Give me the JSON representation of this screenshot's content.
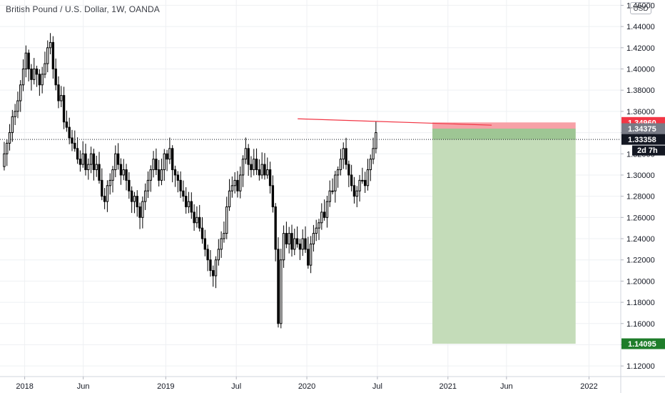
{
  "header": {
    "title": "British Pound / U.S. Dollar, 1W, OANDA",
    "currency": "USD"
  },
  "chart_data": {
    "type": "candlestick",
    "title": "British Pound / U.S. Dollar, 1W, OANDA",
    "symbol": "GBPUSD",
    "interval": "1W",
    "exchange": "OANDA",
    "currency": "USD",
    "ylim": [
      1.11,
      1.465
    ],
    "y_ticks": [
      1.12,
      1.14,
      1.16,
      1.18,
      1.2,
      1.22,
      1.24,
      1.26,
      1.28,
      1.3,
      1.32,
      1.34,
      1.36,
      1.38,
      1.4,
      1.42,
      1.44,
      1.46
    ],
    "x_ticks": [
      {
        "label": "2018",
        "t": 2018.0
      },
      {
        "label": "Jun",
        "t": 2018.415
      },
      {
        "label": "2019",
        "t": 2019.0
      },
      {
        "label": "Jul",
        "t": 2019.5
      },
      {
        "label": "2020",
        "t": 2020.0
      },
      {
        "label": "Jul",
        "t": 2020.5
      },
      {
        "label": "2021",
        "t": 2021.0
      },
      {
        "label": "Jun",
        "t": 2021.415
      },
      {
        "label": "2022",
        "t": 2022.0
      }
    ],
    "x_range": [
      2017.825,
      2022.225
    ],
    "series_close": [
      1.32,
      1.33,
      1.34,
      1.355,
      1.36,
      1.37,
      1.385,
      1.4,
      1.415,
      1.4,
      1.39,
      1.4,
      1.395,
      1.385,
      1.395,
      1.405,
      1.42,
      1.425,
      1.4,
      1.385,
      1.37,
      1.375,
      1.35,
      1.345,
      1.335,
      1.33,
      1.325,
      1.315,
      1.31,
      1.32,
      1.305,
      1.31,
      1.32,
      1.305,
      1.31,
      1.295,
      1.28,
      1.275,
      1.29,
      1.295,
      1.305,
      1.32,
      1.31,
      1.3,
      1.305,
      1.295,
      1.285,
      1.275,
      1.28,
      1.27,
      1.26,
      1.275,
      1.285,
      1.295,
      1.305,
      1.315,
      1.305,
      1.295,
      1.305,
      1.32,
      1.315,
      1.325,
      1.305,
      1.3,
      1.295,
      1.285,
      1.28,
      1.27,
      1.275,
      1.265,
      1.255,
      1.26,
      1.25,
      1.24,
      1.23,
      1.22,
      1.21,
      1.205,
      1.22,
      1.23,
      1.24,
      1.245,
      1.27,
      1.285,
      1.29,
      1.295,
      1.285,
      1.3,
      1.315,
      1.325,
      1.31,
      1.305,
      1.315,
      1.305,
      1.3,
      1.31,
      1.3,
      1.305,
      1.29,
      1.27,
      1.23,
      1.16,
      1.22,
      1.245,
      1.235,
      1.245,
      1.23,
      1.24,
      1.235,
      1.23,
      1.24,
      1.23,
      1.215,
      1.235,
      1.245,
      1.25,
      1.255,
      1.265,
      1.26,
      1.275,
      1.285,
      1.285,
      1.3,
      1.305,
      1.315,
      1.325,
      1.31,
      1.3,
      1.29,
      1.28,
      1.285,
      1.295,
      1.295,
      1.29,
      1.305,
      1.315,
      1.325,
      1.34
    ],
    "last_price": 1.33358,
    "countdown": "2d 7h",
    "trendline": {
      "from": {
        "t": 2019.935,
        "price": 1.353
      },
      "to": {
        "t": 2021.31,
        "price": 1.347
      }
    },
    "position": {
      "type": "short",
      "t_start": 2020.89,
      "t_end": 2021.905,
      "stop": 1.3496,
      "entry": 1.34375,
      "target": 1.14095
    },
    "price_labels": [
      {
        "name": "stop",
        "text": "1.34960",
        "price": 1.3496,
        "color": "#f23645"
      },
      {
        "name": "entry",
        "text": "1.34375",
        "price": 1.34375,
        "color": "#787b86"
      },
      {
        "name": "last",
        "text": "1.33358",
        "price": 1.33358,
        "color": "#131722"
      },
      {
        "name": "target",
        "text": "1.14095",
        "price": 1.14095,
        "color": "#1e7d2a"
      }
    ],
    "colors": {
      "candle": "#000000",
      "grid": "#eef0f3",
      "trendline": "#f23645",
      "stop_zone": "#f7a1a7",
      "target_zone": "#c4dcb9",
      "target_zone_top": "#8fbc84",
      "axis_text": "#131722"
    }
  }
}
